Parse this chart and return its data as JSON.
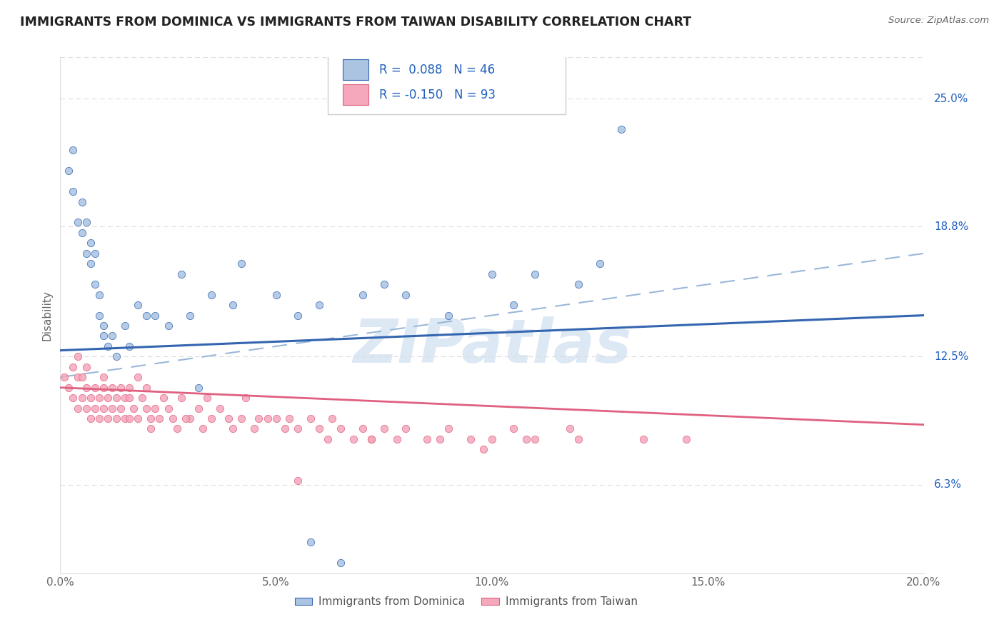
{
  "title": "IMMIGRANTS FROM DOMINICA VS IMMIGRANTS FROM TAIWAN DISABILITY CORRELATION CHART",
  "source": "Source: ZipAtlas.com",
  "xlabel_vals": [
    0.0,
    5.0,
    10.0,
    15.0,
    20.0
  ],
  "ylabel_vals": [
    6.3,
    12.5,
    18.8,
    25.0
  ],
  "ylabel_ticks": [
    "6.3%",
    "12.5%",
    "18.8%",
    "25.0%"
  ],
  "xlim": [
    0.0,
    20.0
  ],
  "ylim": [
    2.0,
    27.0
  ],
  "dominica_label": "Immigrants from Dominica",
  "taiwan_label": "Immigrants from Taiwan",
  "dominica_R": "0.088",
  "dominica_N": "46",
  "taiwan_R": "-0.150",
  "taiwan_N": "93",
  "dominica_color": "#aac4e2",
  "taiwan_color": "#f5a8bc",
  "dominica_line_color": "#3465b0",
  "taiwan_line_color": "#e06080",
  "dashed_line_color": "#9ab8d8",
  "watermark_text": "ZIPatlas",
  "watermark_color": "#dce8f4",
  "background_color": "#ffffff",
  "grid_color": "#dddddd",
  "dominica_x": [
    0.2,
    0.3,
    0.3,
    0.4,
    0.5,
    0.5,
    0.6,
    0.6,
    0.7,
    0.7,
    0.8,
    0.8,
    0.9,
    0.9,
    1.0,
    1.0,
    1.1,
    1.2,
    1.3,
    1.5,
    1.6,
    1.8,
    2.0,
    2.2,
    2.5,
    2.8,
    3.0,
    3.5,
    4.0,
    4.2,
    5.0,
    5.5,
    6.0,
    7.0,
    7.5,
    8.0,
    9.0,
    10.0,
    10.5,
    11.0,
    12.0,
    12.5,
    13.0,
    5.8,
    3.2,
    6.5
  ],
  "dominica_y": [
    21.5,
    20.5,
    22.5,
    19.0,
    18.5,
    20.0,
    17.5,
    19.0,
    17.0,
    18.0,
    16.0,
    17.5,
    15.5,
    14.5,
    14.0,
    13.5,
    13.0,
    13.5,
    12.5,
    14.0,
    13.0,
    15.0,
    14.5,
    14.5,
    14.0,
    16.5,
    14.5,
    15.5,
    15.0,
    17.0,
    15.5,
    14.5,
    15.0,
    15.5,
    16.0,
    15.5,
    14.5,
    16.5,
    15.0,
    16.5,
    16.0,
    17.0,
    23.5,
    3.5,
    11.0,
    2.5
  ],
  "taiwan_x": [
    0.1,
    0.2,
    0.3,
    0.3,
    0.4,
    0.4,
    0.5,
    0.5,
    0.6,
    0.6,
    0.7,
    0.7,
    0.8,
    0.8,
    0.9,
    0.9,
    1.0,
    1.0,
    1.0,
    1.1,
    1.1,
    1.2,
    1.2,
    1.3,
    1.3,
    1.4,
    1.4,
    1.5,
    1.5,
    1.6,
    1.6,
    1.7,
    1.8,
    1.9,
    2.0,
    2.0,
    2.1,
    2.2,
    2.3,
    2.4,
    2.5,
    2.6,
    2.7,
    2.8,
    3.0,
    3.2,
    3.3,
    3.5,
    3.7,
    3.9,
    4.0,
    4.2,
    4.5,
    4.8,
    5.0,
    5.2,
    5.5,
    5.8,
    6.0,
    6.3,
    6.5,
    7.0,
    7.2,
    7.5,
    8.0,
    8.5,
    9.0,
    9.5,
    10.0,
    10.5,
    11.0,
    12.0,
    4.6,
    3.4,
    6.8,
    5.3,
    7.8,
    2.1,
    1.6,
    2.9,
    0.6,
    0.4,
    4.3,
    1.8,
    11.8,
    13.5,
    14.5,
    6.2,
    7.2,
    9.8,
    10.8,
    8.8,
    5.5
  ],
  "taiwan_y": [
    11.5,
    11.0,
    10.5,
    12.0,
    10.0,
    11.5,
    10.5,
    11.5,
    10.0,
    11.0,
    10.5,
    9.5,
    11.0,
    10.0,
    9.5,
    10.5,
    11.0,
    10.0,
    11.5,
    9.5,
    10.5,
    10.0,
    11.0,
    9.5,
    10.5,
    10.0,
    11.0,
    9.5,
    10.5,
    10.5,
    11.0,
    10.0,
    9.5,
    10.5,
    10.0,
    11.0,
    9.5,
    10.0,
    9.5,
    10.5,
    10.0,
    9.5,
    9.0,
    10.5,
    9.5,
    10.0,
    9.0,
    9.5,
    10.0,
    9.5,
    9.0,
    9.5,
    9.0,
    9.5,
    9.5,
    9.0,
    9.0,
    9.5,
    9.0,
    9.5,
    9.0,
    9.0,
    8.5,
    9.0,
    9.0,
    8.5,
    9.0,
    8.5,
    8.5,
    9.0,
    8.5,
    8.5,
    9.5,
    10.5,
    8.5,
    9.5,
    8.5,
    9.0,
    9.5,
    9.5,
    12.0,
    12.5,
    10.5,
    11.5,
    9.0,
    8.5,
    8.5,
    8.5,
    8.5,
    8.0,
    8.5,
    8.5,
    6.5
  ],
  "dom_trend_x0": 0.0,
  "dom_trend_y0": 12.8,
  "dom_trend_x1": 20.0,
  "dom_trend_y1": 14.5,
  "tai_trend_x0": 0.0,
  "tai_trend_y0": 11.0,
  "tai_trend_x1": 20.0,
  "tai_trend_y1": 9.2,
  "dash_trend_x0": 0.0,
  "dash_trend_y0": 11.5,
  "dash_trend_x1": 20.0,
  "dash_trend_y1": 17.5,
  "legend_R_color": "#2060c0",
  "legend_N_color": "#2060c0"
}
